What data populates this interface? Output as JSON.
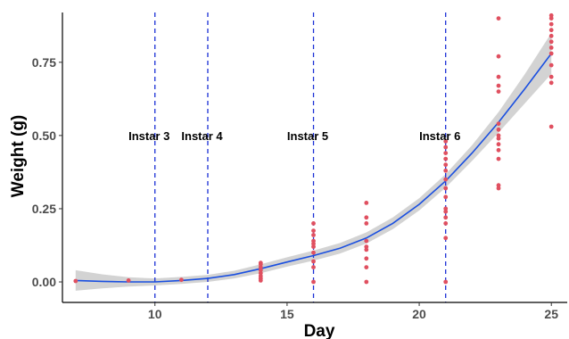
{
  "chart_data": {
    "type": "scatter",
    "xlabel": "Day",
    "ylabel": "Weight (g)",
    "xlim": [
      6.5,
      25.6
    ],
    "ylim": [
      -0.07,
      0.92
    ],
    "x_ticks": [
      10,
      15,
      20,
      25
    ],
    "y_ticks": [
      0.0,
      0.25,
      0.5,
      0.75
    ],
    "x_tick_labels": [
      "10",
      "15",
      "20",
      "25"
    ],
    "y_tick_labels": [
      "0.00",
      "0.25",
      "0.50",
      "0.75"
    ],
    "grid": false,
    "colors": {
      "points": "#e05060",
      "smooth_line": "#1a4fe0",
      "ribbon": "#c8c8c8",
      "vlines": "#1a2fd6"
    },
    "points": [
      {
        "x": 7,
        "y": 0.003
      },
      {
        "x": 9,
        "y": 0.005
      },
      {
        "x": 11,
        "y": 0.007
      },
      {
        "x": 14,
        "y": 0.005
      },
      {
        "x": 14,
        "y": 0.012
      },
      {
        "x": 14,
        "y": 0.02
      },
      {
        "x": 14,
        "y": 0.03
      },
      {
        "x": 14,
        "y": 0.04
      },
      {
        "x": 14,
        "y": 0.05
      },
      {
        "x": 14,
        "y": 0.06
      },
      {
        "x": 14,
        "y": 0.065
      },
      {
        "x": 16,
        "y": 0.0
      },
      {
        "x": 16,
        "y": 0.05
      },
      {
        "x": 16,
        "y": 0.07
      },
      {
        "x": 16,
        "y": 0.1
      },
      {
        "x": 16,
        "y": 0.12
      },
      {
        "x": 16,
        "y": 0.13
      },
      {
        "x": 16,
        "y": 0.14
      },
      {
        "x": 16,
        "y": 0.16
      },
      {
        "x": 16,
        "y": 0.175
      },
      {
        "x": 16,
        "y": 0.2
      },
      {
        "x": 18,
        "y": 0.0
      },
      {
        "x": 18,
        "y": 0.05
      },
      {
        "x": 18,
        "y": 0.08
      },
      {
        "x": 18,
        "y": 0.11
      },
      {
        "x": 18,
        "y": 0.12
      },
      {
        "x": 18,
        "y": 0.14
      },
      {
        "x": 18,
        "y": 0.2
      },
      {
        "x": 18,
        "y": 0.22
      },
      {
        "x": 18,
        "y": 0.27
      },
      {
        "x": 21,
        "y": 0.0
      },
      {
        "x": 21,
        "y": 0.15
      },
      {
        "x": 21,
        "y": 0.2
      },
      {
        "x": 21,
        "y": 0.22
      },
      {
        "x": 21,
        "y": 0.24
      },
      {
        "x": 21,
        "y": 0.25
      },
      {
        "x": 21,
        "y": 0.29
      },
      {
        "x": 21,
        "y": 0.32
      },
      {
        "x": 21,
        "y": 0.35
      },
      {
        "x": 21,
        "y": 0.38
      },
      {
        "x": 21,
        "y": 0.4
      },
      {
        "x": 21,
        "y": 0.42
      },
      {
        "x": 21,
        "y": 0.44
      },
      {
        "x": 21,
        "y": 0.46
      },
      {
        "x": 21,
        "y": 0.48
      },
      {
        "x": 23,
        "y": 0.32
      },
      {
        "x": 23,
        "y": 0.33
      },
      {
        "x": 23,
        "y": 0.42
      },
      {
        "x": 23,
        "y": 0.45
      },
      {
        "x": 23,
        "y": 0.47
      },
      {
        "x": 23,
        "y": 0.49
      },
      {
        "x": 23,
        "y": 0.5
      },
      {
        "x": 23,
        "y": 0.52
      },
      {
        "x": 23,
        "y": 0.54
      },
      {
        "x": 23,
        "y": 0.65
      },
      {
        "x": 23,
        "y": 0.67
      },
      {
        "x": 23,
        "y": 0.7
      },
      {
        "x": 23,
        "y": 0.77
      },
      {
        "x": 23,
        "y": 0.9
      },
      {
        "x": 25,
        "y": 0.53
      },
      {
        "x": 25,
        "y": 0.68
      },
      {
        "x": 25,
        "y": 0.7
      },
      {
        "x": 25,
        "y": 0.74
      },
      {
        "x": 25,
        "y": 0.78
      },
      {
        "x": 25,
        "y": 0.8
      },
      {
        "x": 25,
        "y": 0.82
      },
      {
        "x": 25,
        "y": 0.84
      },
      {
        "x": 25,
        "y": 0.86
      },
      {
        "x": 25,
        "y": 0.88
      },
      {
        "x": 25,
        "y": 0.9
      },
      {
        "x": 25,
        "y": 0.91
      }
    ],
    "smooth": [
      {
        "x": 7,
        "y": 0.005,
        "lo": -0.03,
        "hi": 0.04
      },
      {
        "x": 8,
        "y": 0.002,
        "lo": -0.022,
        "hi": 0.026
      },
      {
        "x": 9,
        "y": 0.0,
        "lo": -0.016,
        "hi": 0.016
      },
      {
        "x": 10,
        "y": 0.0,
        "lo": -0.012,
        "hi": 0.012
      },
      {
        "x": 11,
        "y": 0.005,
        "lo": -0.007,
        "hi": 0.017
      },
      {
        "x": 12,
        "y": 0.012,
        "lo": 0.0,
        "hi": 0.024
      },
      {
        "x": 13,
        "y": 0.025,
        "lo": 0.012,
        "hi": 0.038
      },
      {
        "x": 14,
        "y": 0.045,
        "lo": 0.03,
        "hi": 0.06
      },
      {
        "x": 15,
        "y": 0.068,
        "lo": 0.052,
        "hi": 0.084
      },
      {
        "x": 16,
        "y": 0.09,
        "lo": 0.073,
        "hi": 0.107
      },
      {
        "x": 17,
        "y": 0.115,
        "lo": 0.097,
        "hi": 0.133
      },
      {
        "x": 18,
        "y": 0.15,
        "lo": 0.131,
        "hi": 0.169
      },
      {
        "x": 19,
        "y": 0.2,
        "lo": 0.18,
        "hi": 0.22
      },
      {
        "x": 20,
        "y": 0.265,
        "lo": 0.244,
        "hi": 0.286
      },
      {
        "x": 21,
        "y": 0.345,
        "lo": 0.322,
        "hi": 0.368
      },
      {
        "x": 22,
        "y": 0.44,
        "lo": 0.413,
        "hi": 0.467
      },
      {
        "x": 23,
        "y": 0.545,
        "lo": 0.51,
        "hi": 0.58
      },
      {
        "x": 24,
        "y": 0.66,
        "lo": 0.61,
        "hi": 0.71
      },
      {
        "x": 25,
        "y": 0.78,
        "lo": 0.71,
        "hi": 0.85
      }
    ],
    "vlines": [
      10,
      12,
      16,
      21
    ],
    "annotations": [
      {
        "text": "Instar 3",
        "x": 9.0,
        "y": 0.5
      },
      {
        "text": "Instar 4",
        "x": 11.0,
        "y": 0.5
      },
      {
        "text": "Instar 5",
        "x": 15.0,
        "y": 0.5
      },
      {
        "text": "Instar 6",
        "x": 20.0,
        "y": 0.5
      }
    ]
  }
}
